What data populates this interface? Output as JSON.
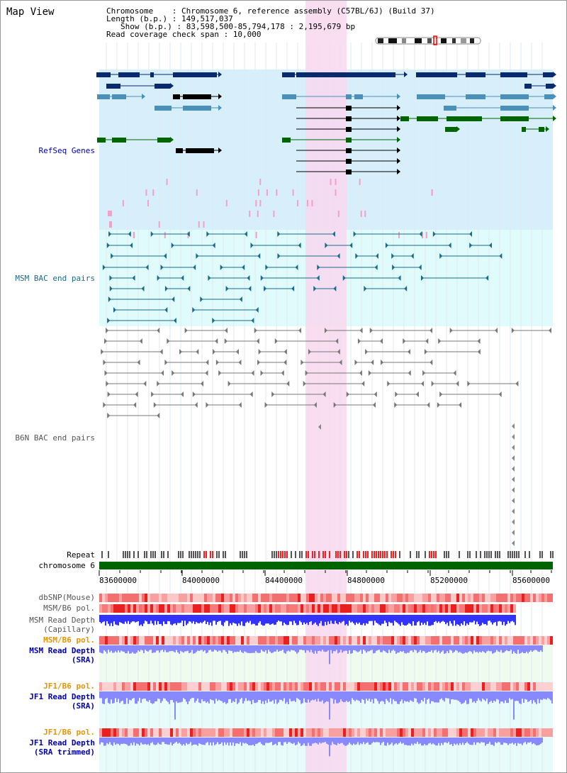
{
  "title": "Map View",
  "info": {
    "line1": "Chromosome    : Chromosome 6, reference assembly (C57BL/6J) (Build 37)",
    "line2": "Length (b.p.) : 149,517,037",
    "line3": "Show (b.p.) : 83,598,500-85,794,178 : 2,195,679 bp",
    "line4": "Read coverage check span : 10,000"
  },
  "tracks": {
    "refseq": "RefSeq Genes",
    "msm_bac": "MSM BAC end pairs",
    "b6n_bac": "B6N BAC end pairs",
    "repeat": "Repeat",
    "chromosome": "chromosome 6",
    "dbsnp": "dbSNP(Mouse)",
    "msm_b6_pol_a": "MSM/B6 pol.",
    "msm_depth_cap_1": "MSM Read Depth",
    "msm_depth_cap_2": "(Capillary)",
    "msm_b6_pol_b": "MSM/B6 pol.",
    "msm_depth_sra_1": "MSM Read Depth",
    "msm_depth_sra_2": "(SRA)",
    "jf1_b6_pol_a": "JF1/B6 pol.",
    "jf1_depth_sra_1": "JF1 Read Depth",
    "jf1_depth_sra_2": "(SRA)",
    "jf1_b6_pol_b": "JF1/B6 pol.",
    "jf1_depth_trim_1": "JF1 Read Depth",
    "jf1_depth_trim_2": "(SRA trimmed)"
  },
  "axis": {
    "ticks": [
      "83600000",
      "84000000",
      "84400000",
      "84800000",
      "85200000",
      "85600000"
    ]
  },
  "colors": {
    "refseq_bg": "#d6effa",
    "msm_bg": "#e0fbfb",
    "highlight": "#f8d8f0",
    "refseq_dark": "#0a2a6e",
    "refseq_mid": "#4a90b8",
    "refseq_green": "#006400",
    "msm_line": "#1a6a8a",
    "b6n_line": "#777777",
    "chromosome_bar": "#006400",
    "depth_blue": "#3333ff",
    "depth_light_blue": "#8888ff",
    "pol_red": "#ee3333",
    "label_blue": "#0000aa",
    "label_orange": "#e69500"
  }
}
